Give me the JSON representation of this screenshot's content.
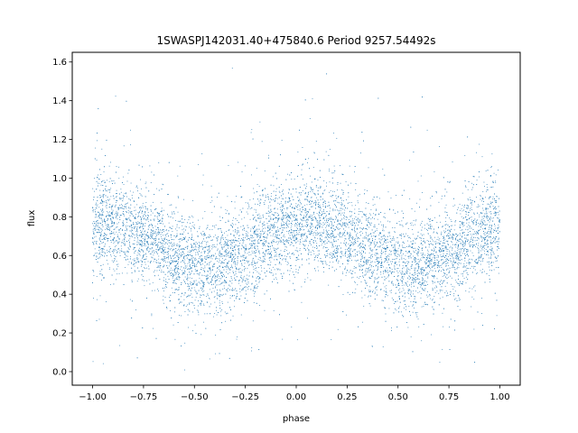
{
  "chart_data": {
    "type": "scatter",
    "title": "1SWASPJ142031.40+475840.6 Period 9257.54492s",
    "xlabel": "phase",
    "ylabel": "flux",
    "xlim": [
      -1.1,
      1.1
    ],
    "ylim": [
      -0.07,
      1.65
    ],
    "x_ticks": [
      -1.0,
      -0.75,
      -0.5,
      -0.25,
      0.0,
      0.25,
      0.5,
      0.75,
      1.0
    ],
    "x_tick_labels": [
      "−1.00",
      "−0.75",
      "−0.50",
      "−0.25",
      "0.00",
      "0.25",
      "0.50",
      "0.75",
      "1.00"
    ],
    "y_ticks": [
      0.0,
      0.2,
      0.4,
      0.6,
      0.8,
      1.0,
      1.2,
      1.4,
      1.6
    ],
    "y_tick_labels": [
      "0.0",
      "0.2",
      "0.4",
      "0.6",
      "0.8",
      "1.0",
      "1.2",
      "1.4",
      "1.6"
    ],
    "grid": false,
    "legend": "none",
    "marker_color": "#1f77b4",
    "series": [
      {
        "phase_range": [
          -1.0,
          1.0
        ],
        "approx_points": 9000,
        "trend": {
          "description": "double-humped modulation",
          "phase": [
            -1.0,
            -0.85,
            -0.7,
            -0.55,
            -0.45,
            -0.3,
            -0.15,
            0.0,
            0.15,
            0.3,
            0.45,
            0.55,
            0.7,
            0.85,
            1.0
          ],
          "median_flux": [
            0.76,
            0.76,
            0.68,
            0.57,
            0.54,
            0.58,
            0.68,
            0.77,
            0.76,
            0.68,
            0.57,
            0.54,
            0.58,
            0.68,
            0.76
          ],
          "scatter_std": 0.12,
          "flux_extent": [
            0.0,
            1.6
          ]
        }
      }
    ]
  }
}
